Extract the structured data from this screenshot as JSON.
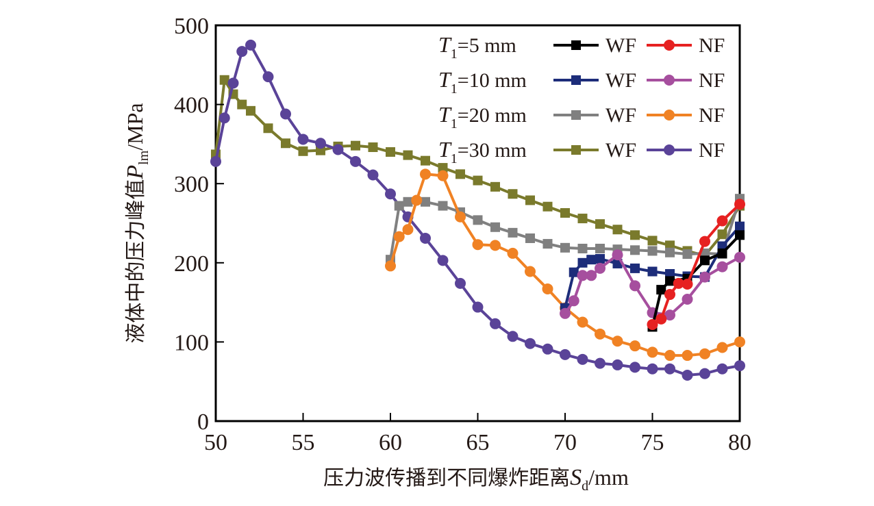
{
  "chart_data": {
    "type": "line",
    "title": "",
    "xlabel": {
      "prefix": "压力波传播到不同爆炸距离",
      "var": "S",
      "sub": "d",
      "unit": "/mm"
    },
    "ylabel": {
      "prefix": "液体中的压力峰值",
      "var": "P",
      "sub": "lm",
      "unit": "/MPa"
    },
    "xlim": [
      50,
      80
    ],
    "ylim": [
      0,
      500
    ],
    "xticks": [
      50,
      55,
      60,
      65,
      70,
      75,
      80
    ],
    "yticks": [
      0,
      100,
      200,
      300,
      400,
      500
    ],
    "grid": false,
    "legend_position": "top-right",
    "legend_rows": [
      {
        "label_var": "T",
        "label_sub": "1",
        "label_rest": "=5 mm",
        "wf": "T1=5 mm WF",
        "nf": "T1=5 mm NF"
      },
      {
        "label_var": "T",
        "label_sub": "1",
        "label_rest": "=10 mm",
        "wf": "T1=10 mm WF",
        "nf": "T1=10 mm NF"
      },
      {
        "label_var": "T",
        "label_sub": "1",
        "label_rest": "=20 mm",
        "wf": "T1=20 mm WF",
        "nf": "T1=20 mm NF"
      },
      {
        "label_var": "T",
        "label_sub": "1",
        "label_rest": "=30 mm",
        "wf": "T1=30 mm WF",
        "nf": "T1=30 mm NF"
      }
    ],
    "series": [
      {
        "name": "T1=30 mm WF",
        "legend_label": "WF",
        "marker": "square",
        "color": "#7a7a2c",
        "x": [
          50,
          50.5,
          51,
          51.5,
          52,
          53,
          54,
          55,
          56,
          57,
          58,
          59,
          60,
          61,
          62,
          63,
          64,
          65,
          66,
          67,
          68,
          69,
          70,
          71,
          72,
          73,
          74,
          75,
          76,
          77,
          78,
          79,
          80
        ],
        "y": [
          337,
          431,
          413,
          400,
          392,
          370,
          351,
          341,
          342,
          347,
          348,
          346,
          340,
          336,
          329,
          320,
          312,
          304,
          296,
          287,
          279,
          271,
          263,
          256,
          249,
          242,
          235,
          228,
          222,
          215,
          209,
          236,
          272
        ]
      },
      {
        "name": "T1=30 mm NF",
        "legend_label": "NF",
        "marker": "circle",
        "color": "#5a4398",
        "x": [
          50,
          50.5,
          51,
          51.5,
          52,
          53,
          54,
          55,
          56,
          57,
          58,
          59,
          60,
          61,
          62,
          63,
          64,
          65,
          66,
          67,
          68,
          69,
          70,
          71,
          72,
          73,
          74,
          75,
          76,
          77,
          78,
          79,
          80
        ],
        "y": [
          328,
          383,
          427,
          467,
          475,
          435,
          388,
          356,
          351,
          343,
          328,
          311,
          287,
          258,
          231,
          203,
          174,
          144,
          123,
          107,
          98,
          91,
          84,
          78,
          73,
          71,
          68,
          66,
          66,
          58,
          60,
          66,
          70
        ]
      },
      {
        "name": "T1=20 mm WF",
        "legend_label": "WF",
        "marker": "square",
        "color": "#808080",
        "x": [
          60,
          60.5,
          61,
          62,
          63,
          64,
          65,
          66,
          67,
          68,
          69,
          70,
          71,
          72,
          73,
          74,
          75,
          76,
          77,
          78,
          79,
          80
        ],
        "y": [
          204,
          272,
          277,
          277,
          272,
          264,
          254,
          245,
          238,
          231,
          224,
          219,
          218,
          218,
          217,
          216,
          215,
          213,
          211,
          212,
          211,
          281
        ]
      },
      {
        "name": "T1=20 mm NF",
        "legend_label": "NF",
        "marker": "circle",
        "color": "#f08224",
        "x": [
          60,
          60.5,
          61,
          61.5,
          62,
          63,
          64,
          65,
          66,
          67,
          68,
          69,
          70,
          71,
          72,
          73,
          74,
          75,
          76,
          77,
          78,
          79,
          80
        ],
        "y": [
          196,
          233,
          242,
          279,
          312,
          310,
          258,
          223,
          222,
          212,
          189,
          167,
          143,
          125,
          110,
          101,
          95,
          87,
          83,
          83,
          85,
          93,
          100
        ]
      },
      {
        "name": "T1=10 mm WF",
        "legend_label": "WF",
        "marker": "square",
        "color": "#1d2d7a",
        "x": [
          70,
          70.5,
          71,
          71.5,
          72,
          73,
          74,
          75,
          76,
          77,
          78,
          79,
          80
        ],
        "y": [
          143,
          188,
          200,
          204,
          205,
          199,
          193,
          189,
          186,
          183,
          182,
          221,
          246
        ]
      },
      {
        "name": "T1=10 mm NF",
        "legend_label": "NF",
        "marker": "circle",
        "color": "#a64f9e",
        "x": [
          70,
          70.5,
          71,
          71.5,
          72,
          73,
          74,
          75,
          76,
          77,
          78,
          79,
          80
        ],
        "y": [
          136,
          152,
          184,
          184,
          193,
          210,
          171,
          137,
          134,
          154,
          182,
          195,
          207
        ]
      },
      {
        "name": "T1=5 mm WF",
        "legend_label": "WF",
        "marker": "square",
        "color": "#000000",
        "x": [
          75,
          75.5,
          76,
          77,
          78,
          79,
          80
        ],
        "y": [
          119,
          166,
          177,
          180,
          203,
          212,
          235
        ]
      },
      {
        "name": "T1=5 mm NF",
        "legend_label": "NF",
        "marker": "circle",
        "color": "#e62121",
        "x": [
          75,
          75.5,
          76,
          76.5,
          77,
          78,
          79,
          80
        ],
        "y": [
          122,
          129,
          160,
          174,
          173,
          227,
          253,
          274
        ]
      }
    ],
    "legend_order": [
      "T1=5 mm WF",
      "T1=5 mm NF",
      "T1=10 mm WF",
      "T1=10 mm NF",
      "T1=20 mm WF",
      "T1=20 mm NF",
      "T1=30 mm WF",
      "T1=30 mm NF"
    ]
  }
}
